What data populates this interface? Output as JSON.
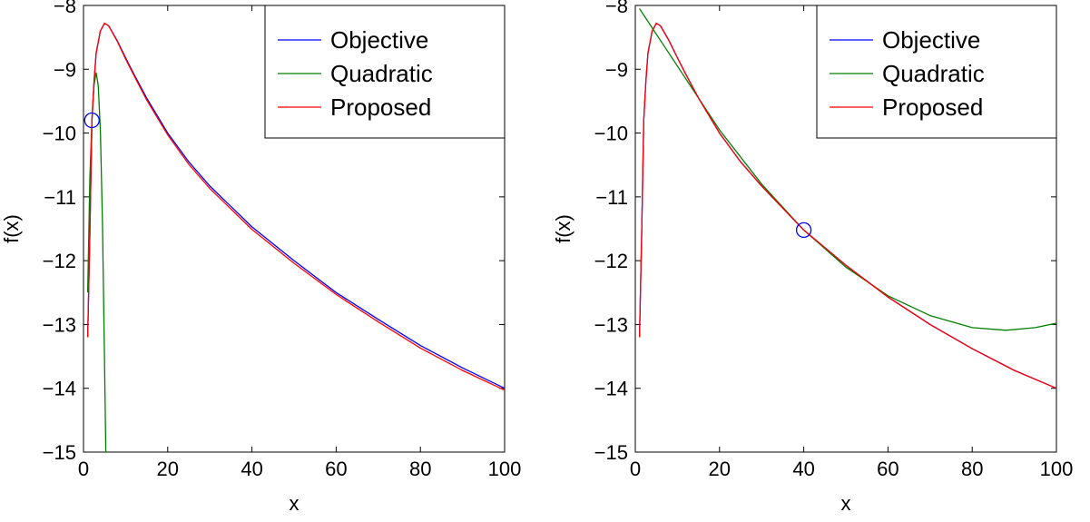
{
  "chart_data": [
    {
      "type": "line",
      "title": "",
      "xlabel": "x",
      "ylabel": "f(x)",
      "xlim": [
        0,
        100
      ],
      "ylim": [
        -15,
        -8
      ],
      "xticks": [
        "0",
        "20",
        "40",
        "60",
        "80",
        "100"
      ],
      "yticks": [
        "−8",
        "−9",
        "−10",
        "−11",
        "−12",
        "−13",
        "−14",
        "−15"
      ],
      "grid": false,
      "legend_position": "top-right",
      "marker": {
        "shape": "circle",
        "color": "#0000ff",
        "x": 2,
        "y": -9.8
      },
      "series": [
        {
          "name": "Objective",
          "color": "#0000ff",
          "x": [
            1,
            1.5,
            2,
            2.5,
            3,
            4,
            5,
            6,
            8,
            10,
            12,
            15,
            20,
            25,
            30,
            40,
            50,
            60,
            70,
            80,
            90,
            100
          ],
          "y": [
            -13.2,
            -11.6,
            -9.8,
            -9.2,
            -8.75,
            -8.4,
            -8.28,
            -8.32,
            -8.55,
            -8.82,
            -9.08,
            -9.45,
            -10.0,
            -10.45,
            -10.83,
            -11.47,
            -12.0,
            -12.5,
            -12.92,
            -13.33,
            -13.68,
            -14.0
          ]
        },
        {
          "name": "Quadratic",
          "color": "#008000",
          "x": [
            1,
            1.5,
            2,
            2.5,
            3,
            3.5,
            4,
            4.5,
            5,
            5.3
          ],
          "y": [
            -12.5,
            -10.7,
            -9.8,
            -9.25,
            -9.05,
            -9.25,
            -9.95,
            -11.4,
            -13.6,
            -15.0
          ]
        },
        {
          "name": "Proposed",
          "color": "#ff0000",
          "x": [
            1,
            1.5,
            2,
            2.5,
            3,
            4,
            5,
            6,
            8,
            10,
            12,
            15,
            20,
            25,
            30,
            40,
            50,
            60,
            70,
            80,
            90,
            100
          ],
          "y": [
            -13.2,
            -11.6,
            -9.8,
            -9.2,
            -8.75,
            -8.4,
            -8.28,
            -8.32,
            -8.56,
            -8.84,
            -9.1,
            -9.48,
            -10.03,
            -10.49,
            -10.87,
            -11.51,
            -12.04,
            -12.53,
            -12.96,
            -13.37,
            -13.72,
            -14.03
          ]
        }
      ]
    },
    {
      "type": "line",
      "title": "",
      "xlabel": "x",
      "ylabel": "f(x)",
      "xlim": [
        0,
        100
      ],
      "ylim": [
        -15,
        -8
      ],
      "xticks": [
        "0",
        "20",
        "40",
        "60",
        "80",
        "100"
      ],
      "yticks": [
        "−8",
        "−9",
        "−10",
        "−11",
        "−12",
        "−13",
        "−14",
        "−15"
      ],
      "grid": false,
      "legend_position": "top-right",
      "marker": {
        "shape": "circle",
        "color": "#0000ff",
        "x": 40,
        "y": -11.52
      },
      "series": [
        {
          "name": "Objective",
          "color": "#0000ff",
          "x": [
            1,
            1.5,
            2,
            2.5,
            3,
            4,
            5,
            6,
            8,
            10,
            12,
            15,
            20,
            25,
            30,
            40,
            50,
            60,
            70,
            80,
            90,
            100
          ],
          "y": [
            -13.2,
            -11.6,
            -9.8,
            -9.2,
            -8.75,
            -8.4,
            -8.28,
            -8.32,
            -8.55,
            -8.82,
            -9.08,
            -9.45,
            -10.0,
            -10.45,
            -10.83,
            -11.52,
            -12.07,
            -12.57,
            -13.0,
            -13.38,
            -13.72,
            -14.0
          ]
        },
        {
          "name": "Quadratic",
          "color": "#008000",
          "x": [
            1,
            10,
            20,
            30,
            40,
            50,
            60,
            70,
            80,
            88,
            95,
            100
          ],
          "y": [
            -8.05,
            -8.95,
            -9.95,
            -10.8,
            -11.52,
            -12.1,
            -12.55,
            -12.86,
            -13.05,
            -13.09,
            -13.05,
            -12.98
          ]
        },
        {
          "name": "Proposed",
          "color": "#ff0000",
          "x": [
            1,
            1.5,
            2,
            2.5,
            3,
            4,
            5,
            6,
            8,
            10,
            12,
            15,
            20,
            25,
            30,
            40,
            50,
            60,
            70,
            80,
            90,
            100
          ],
          "y": [
            -13.2,
            -11.6,
            -9.8,
            -9.2,
            -8.75,
            -8.4,
            -8.28,
            -8.32,
            -8.55,
            -8.82,
            -9.08,
            -9.45,
            -10.0,
            -10.45,
            -10.83,
            -11.52,
            -12.07,
            -12.57,
            -13.0,
            -13.38,
            -13.72,
            -14.0
          ]
        }
      ]
    }
  ]
}
